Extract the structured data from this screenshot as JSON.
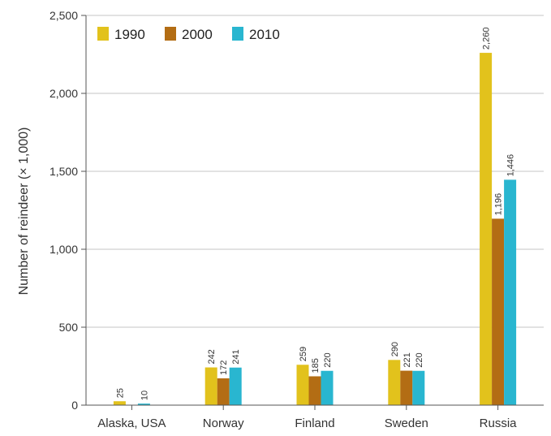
{
  "chart_data": {
    "type": "bar",
    "ylabel": "Number of reindeer (× 1,000)",
    "ylim": [
      0,
      2500
    ],
    "yticks": [
      0,
      500,
      1000,
      1500,
      2000,
      2500
    ],
    "ytick_labels": [
      "0",
      "500",
      "1,000",
      "1,500",
      "2,000",
      "2,500"
    ],
    "categories": [
      "Alaska, USA",
      "Norway",
      "Finland",
      "Sweden",
      "Russia"
    ],
    "grid": true,
    "legend_position": "top-left",
    "series": [
      {
        "name": "1990",
        "color": "#e2c21c",
        "values": [
          25,
          242,
          259,
          290,
          2260
        ],
        "labels": [
          "25",
          "242",
          "259",
          "290",
          "2,260"
        ]
      },
      {
        "name": "2000",
        "color": "#b36d14",
        "values": [
          null,
          172,
          185,
          221,
          1196
        ],
        "labels": [
          "",
          "172",
          "185",
          "221",
          "1,196"
        ]
      },
      {
        "name": "2010",
        "color": "#29b6d0",
        "values": [
          10,
          241,
          220,
          220,
          1446
        ],
        "labels": [
          "10",
          "241",
          "220",
          "220",
          "1,446"
        ]
      }
    ]
  }
}
